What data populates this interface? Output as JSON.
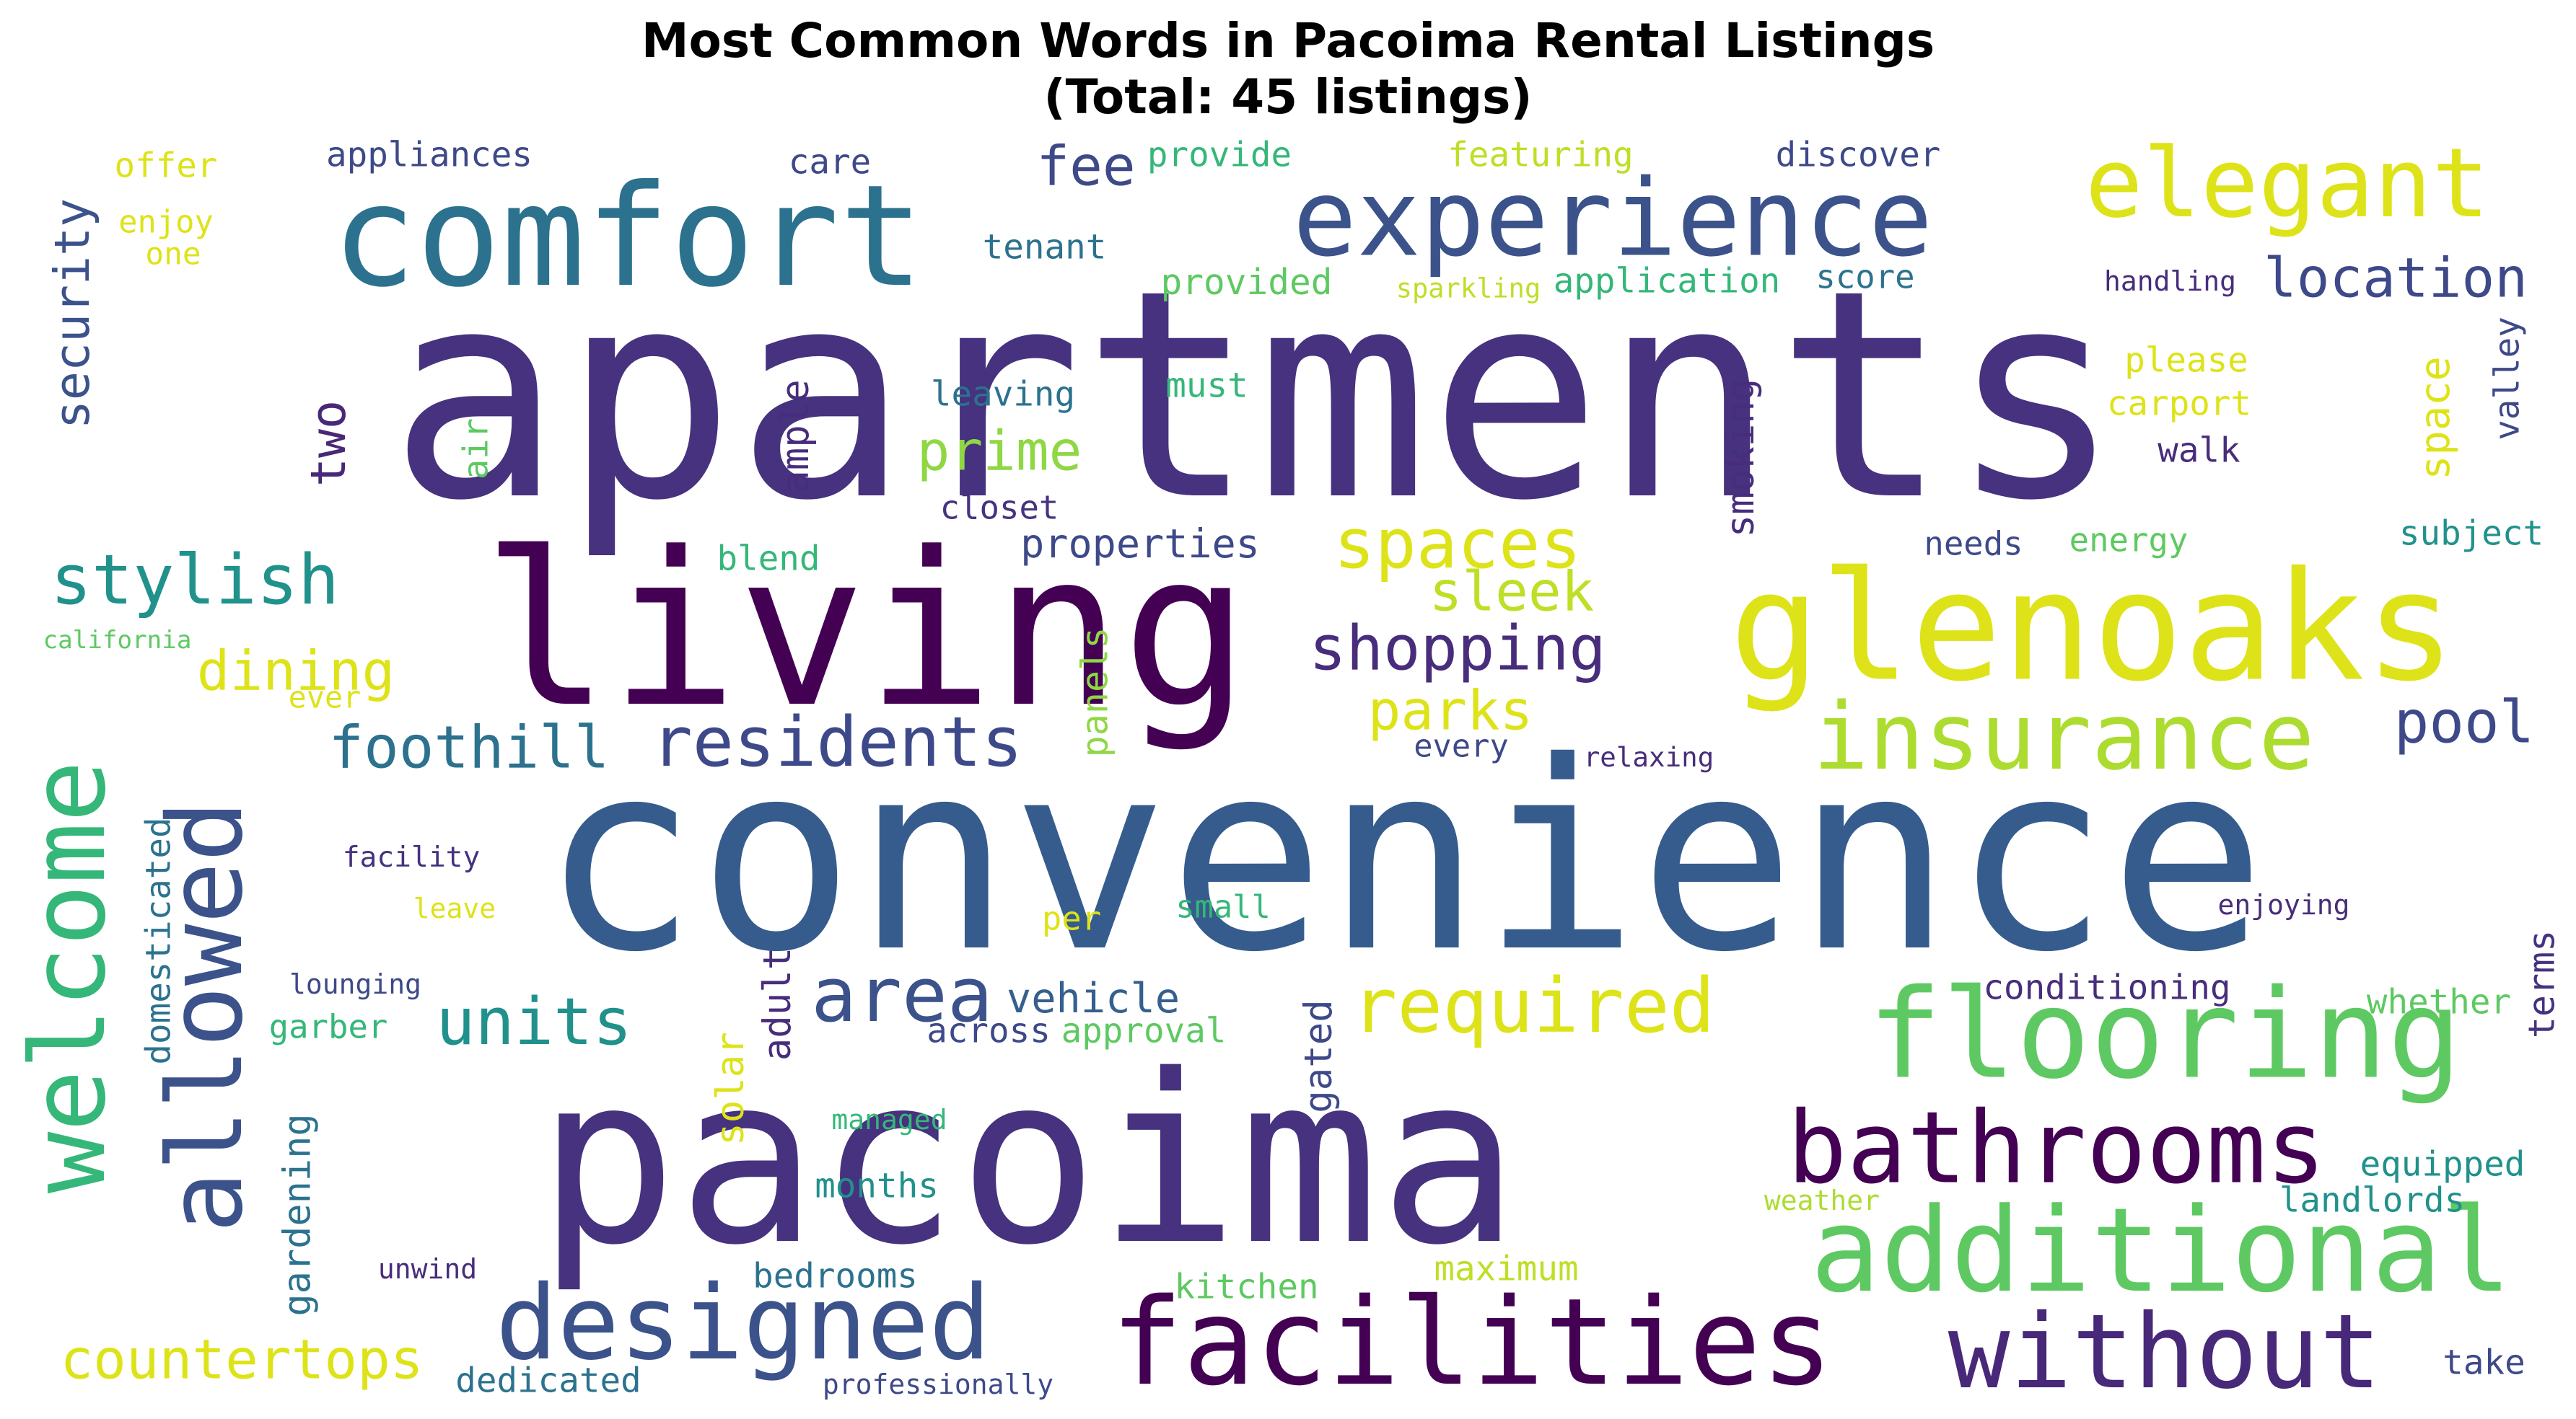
{
  "chart_data": {
    "type": "wordcloud",
    "title_lines": [
      "Most Common Words in Pacoima Rental Listings",
      "(Total: 45 listings)"
    ],
    "words": [
      {
        "text": "apartments",
        "color": "#46327e"
      },
      {
        "text": "convenience",
        "color": "#365c8d"
      },
      {
        "text": "pacoima",
        "color": "#46327e"
      },
      {
        "text": "living",
        "color": "#440154"
      },
      {
        "text": "glenoaks",
        "color": "#dde318"
      },
      {
        "text": "comfort",
        "color": "#2c728e"
      },
      {
        "text": "experience",
        "color": "#3b528b"
      },
      {
        "text": "elegant",
        "color": "#dde318"
      },
      {
        "text": "flooring",
        "color": "#5ec962"
      },
      {
        "text": "additional",
        "color": "#5ec962"
      },
      {
        "text": "insurance",
        "color": "#addc30"
      },
      {
        "text": "facilities",
        "color": "#440154"
      },
      {
        "text": "bathrooms",
        "color": "#440154"
      },
      {
        "text": "without",
        "color": "#482878"
      },
      {
        "text": "designed",
        "color": "#3b528b"
      },
      {
        "text": "allowed",
        "color": "#3b528b"
      },
      {
        "text": "welcome",
        "color": "#35b779"
      },
      {
        "text": "required",
        "color": "#dde318"
      },
      {
        "text": "residents",
        "color": "#3e4989"
      },
      {
        "text": "spaces",
        "color": "#dde318"
      },
      {
        "text": "stylish",
        "color": "#21918c"
      },
      {
        "text": "area",
        "color": "#3b528b"
      },
      {
        "text": "units",
        "color": "#21918c"
      },
      {
        "text": "shopping",
        "color": "#472d7b"
      },
      {
        "text": "countertops",
        "color": "#dde318"
      },
      {
        "text": "foothill",
        "color": "#2c728e"
      },
      {
        "text": "security",
        "color": "#3b528b"
      },
      {
        "text": "location",
        "color": "#3e4989"
      },
      {
        "text": "prime",
        "color": "#8fd744"
      },
      {
        "text": "pool",
        "color": "#3e4989"
      },
      {
        "text": "dining",
        "color": "#dde318"
      },
      {
        "text": "sleek",
        "color": "#bddf26"
      },
      {
        "text": "parks",
        "color": "#dde318"
      },
      {
        "text": "space",
        "color": "#dde318"
      },
      {
        "text": "two",
        "color": "#482878"
      },
      {
        "text": "fee",
        "color": "#3e4989"
      },
      {
        "text": "vehicle",
        "color": "#355f8d"
      },
      {
        "text": "properties",
        "color": "#3e4989"
      },
      {
        "text": "appliances",
        "color": "#3e4989"
      },
      {
        "text": "provide",
        "color": "#35b779"
      },
      {
        "text": "featuring",
        "color": "#bddf26"
      },
      {
        "text": "discover",
        "color": "#3e4989"
      },
      {
        "text": "offer",
        "color": "#dde318"
      },
      {
        "text": "care",
        "color": "#3e4989"
      },
      {
        "text": "enjoy",
        "color": "#dde318"
      },
      {
        "text": "one",
        "color": "#dde318"
      },
      {
        "text": "tenant",
        "color": "#2c728e"
      },
      {
        "text": "provided",
        "color": "#5ec962"
      },
      {
        "text": "application",
        "color": "#35b779"
      },
      {
        "text": "score",
        "color": "#2c728e"
      },
      {
        "text": "handling",
        "color": "#472d7b"
      },
      {
        "text": "sparkling",
        "color": "#bddf26"
      },
      {
        "text": "please",
        "color": "#dde318"
      },
      {
        "text": "carport",
        "color": "#dde318"
      },
      {
        "text": "walk",
        "color": "#472d7b"
      },
      {
        "text": "must",
        "color": "#35b779"
      },
      {
        "text": "leaving",
        "color": "#2c728e"
      },
      {
        "text": "closet",
        "color": "#46327e"
      },
      {
        "text": "air",
        "color": "#5ec962"
      },
      {
        "text": "ample",
        "color": "#472d7b"
      },
      {
        "text": "smoking",
        "color": "#472d7b"
      },
      {
        "text": "valley",
        "color": "#3e4989"
      },
      {
        "text": "subject",
        "color": "#21918c"
      },
      {
        "text": "energy",
        "color": "#5ec962"
      },
      {
        "text": "needs",
        "color": "#3e4989"
      },
      {
        "text": "blend",
        "color": "#35b779"
      },
      {
        "text": "california",
        "color": "#5ec962"
      },
      {
        "text": "ever",
        "color": "#dde318"
      },
      {
        "text": "panels",
        "color": "#8fd744"
      },
      {
        "text": "every",
        "color": "#3e4989"
      },
      {
        "text": "relaxing",
        "color": "#472d7b"
      },
      {
        "text": "facility",
        "color": "#46327e"
      },
      {
        "text": "leave",
        "color": "#dde318"
      },
      {
        "text": "domesticated",
        "color": "#2c728e"
      },
      {
        "text": "per",
        "color": "#dde318"
      },
      {
        "text": "small",
        "color": "#35b779"
      },
      {
        "text": "enjoying",
        "color": "#472d7b"
      },
      {
        "text": "lounging",
        "color": "#3e4989"
      },
      {
        "text": "garber",
        "color": "#35b779"
      },
      {
        "text": "adult",
        "color": "#472d7b"
      },
      {
        "text": "solar",
        "color": "#dde318"
      },
      {
        "text": "across",
        "color": "#3e4989"
      },
      {
        "text": "approval",
        "color": "#5ec962"
      },
      {
        "text": "gated",
        "color": "#3e4989"
      },
      {
        "text": "conditioning",
        "color": "#472d7b"
      },
      {
        "text": "whether",
        "color": "#5ec962"
      },
      {
        "text": "terms",
        "color": "#46327e"
      },
      {
        "text": "managed",
        "color": "#35b779"
      },
      {
        "text": "gardening",
        "color": "#2c728e"
      },
      {
        "text": "months",
        "color": "#21918c"
      },
      {
        "text": "equipped",
        "color": "#21918c"
      },
      {
        "text": "weather",
        "color": "#addc30"
      },
      {
        "text": "landlords",
        "color": "#21918c"
      },
      {
        "text": "unwind",
        "color": "#472d7b"
      },
      {
        "text": "bedrooms",
        "color": "#2c728e"
      },
      {
        "text": "kitchen",
        "color": "#5ec962"
      },
      {
        "text": "maximum",
        "color": "#bddf26"
      },
      {
        "text": "dedicated",
        "color": "#2c728e"
      },
      {
        "text": "professionally",
        "color": "#3e4989"
      },
      {
        "text": "take",
        "color": "#3e4989"
      }
    ]
  }
}
